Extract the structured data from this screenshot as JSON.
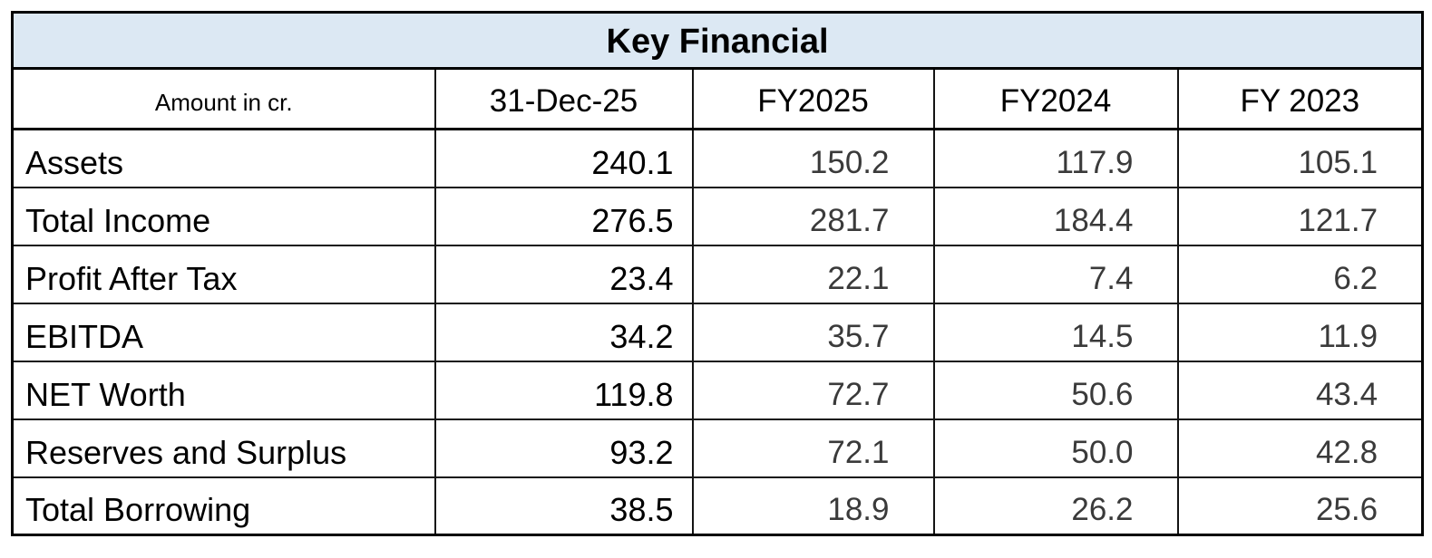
{
  "table": {
    "title": "Key Financial",
    "unit_label": "Amount in cr.",
    "columns": [
      "31-Dec-25",
      "FY2025",
      "FY2024",
      "FY 2023"
    ],
    "rows": [
      {
        "label": "Assets",
        "values": [
          "240.1",
          "150.2",
          "117.9",
          "105.1"
        ]
      },
      {
        "label": "Total Income",
        "values": [
          "276.5",
          "281.7",
          "184.4",
          "121.7"
        ]
      },
      {
        "label": "Profit After Tax",
        "values": [
          "23.4",
          "22.1",
          "7.4",
          "6.2"
        ]
      },
      {
        "label": "EBITDA",
        "values": [
          "34.2",
          "35.7",
          "14.5",
          "11.9"
        ]
      },
      {
        "label": "NET Worth",
        "values": [
          "119.8",
          "72.7",
          "50.6",
          "43.4"
        ]
      },
      {
        "label": "Reserves and Surplus",
        "values": [
          "93.2",
          "72.1",
          "50.0",
          "42.8"
        ]
      },
      {
        "label": "Total Borrowing",
        "values": [
          "38.5",
          "18.9",
          "26.2",
          "25.6"
        ]
      }
    ],
    "colors": {
      "title_background": "#dce8f3",
      "border": "#000000",
      "label_text": "#000000",
      "fy_value_text": "#3a3a3a"
    }
  },
  "chart_data": {
    "type": "table",
    "title": "Key Financial",
    "unit": "Amount in cr.",
    "categories": [
      "Assets",
      "Total Income",
      "Profit After Tax",
      "EBITDA",
      "NET Worth",
      "Reserves and Surplus",
      "Total Borrowing"
    ],
    "series": [
      {
        "name": "31-Dec-25",
        "values": [
          240.1,
          276.5,
          23.4,
          34.2,
          119.8,
          93.2,
          38.5
        ]
      },
      {
        "name": "FY2025",
        "values": [
          150.2,
          281.7,
          22.1,
          35.7,
          72.7,
          72.1,
          18.9
        ]
      },
      {
        "name": "FY2024",
        "values": [
          117.9,
          184.4,
          7.4,
          14.5,
          50.6,
          50.0,
          26.2
        ]
      },
      {
        "name": "FY 2023",
        "values": [
          105.1,
          121.7,
          6.2,
          11.9,
          43.4,
          42.8,
          25.6
        ]
      }
    ]
  }
}
